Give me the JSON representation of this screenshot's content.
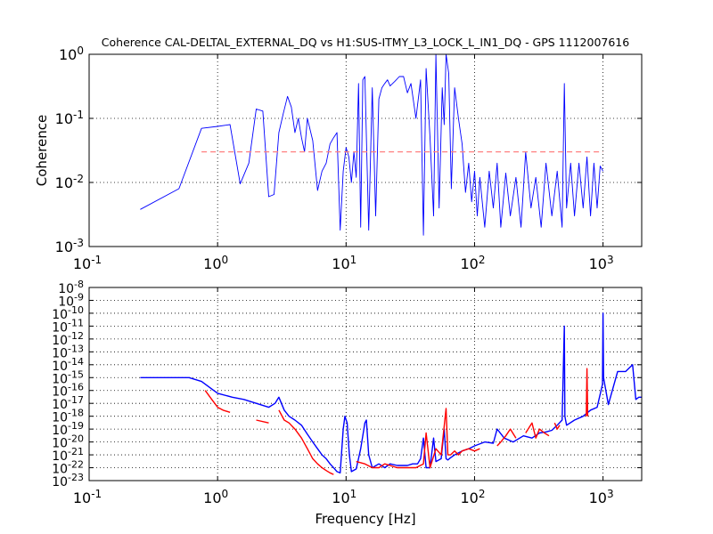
{
  "chart_data": [
    {
      "type": "line",
      "title": "Coherence CAL-DELTAL_EXTERNAL_DQ vs H1:SUS-ITMY_L3_LOCK_L_IN1_DQ - GPS 1112007616",
      "xlabel": "",
      "ylabel": "Coherence",
      "xscale": "log",
      "yscale": "log",
      "xlim": [
        0.1,
        2000
      ],
      "ylim": [
        0.001,
        1
      ],
      "grid": true,
      "x_ticks": [
        0.1,
        1,
        10,
        100,
        1000
      ],
      "y_ticks": [
        0.001,
        0.01,
        0.1,
        1
      ],
      "series": [
        {
          "color": "#0000ff",
          "style": "solid",
          "x": [
            0.25,
            0.5,
            0.75,
            1.0,
            1.25,
            1.5,
            1.75,
            2.0,
            2.25,
            2.5,
            2.75,
            3.0,
            3.25,
            3.5,
            3.75,
            4.0,
            4.25,
            4.5,
            4.75,
            5.0,
            5.5,
            6.0,
            6.5,
            7.0,
            7.5,
            8.0,
            8.5,
            9.0,
            9.5,
            10.0,
            10.5,
            11.0,
            11.5,
            12.0,
            12.5,
            13.0,
            13.5,
            14.0,
            15.0,
            16.0,
            17.0,
            18.0,
            19.0,
            20.0,
            21.0,
            22.0,
            24.0,
            26.0,
            28.0,
            30.0,
            32.0,
            35.0,
            38.0,
            40.0,
            42.0,
            45.0,
            48.0,
            50.0,
            53.0,
            56.0,
            58.0,
            60.0,
            63.0,
            66.0,
            70.0,
            75.0,
            80.0,
            85.0,
            90.0,
            95.0,
            100.0,
            105.0,
            110.0,
            120.0,
            130.0,
            140.0,
            150.0,
            160.0,
            175.0,
            190.0,
            210.0,
            230.0,
            250.0,
            275.0,
            300.0,
            330.0,
            360.0,
            400.0,
            440.0,
            480.0,
            500.0,
            520.0,
            560.0,
            600.0,
            650.0,
            700.0,
            750.0,
            800.0,
            850.0,
            900.0,
            950.0,
            1000.0
          ],
          "values": [
            0.0038,
            0.008,
            0.07,
            0.075,
            0.08,
            0.0095,
            0.02,
            0.14,
            0.13,
            0.006,
            0.0065,
            0.06,
            0.12,
            0.22,
            0.15,
            0.06,
            0.1,
            0.05,
            0.03,
            0.1,
            0.045,
            0.0075,
            0.015,
            0.02,
            0.04,
            0.05,
            0.06,
            0.0018,
            0.015,
            0.035,
            0.025,
            0.01,
            0.03,
            0.012,
            0.35,
            0.002,
            0.4,
            0.45,
            0.0018,
            0.3,
            0.003,
            0.2,
            0.3,
            0.35,
            0.4,
            0.32,
            0.38,
            0.45,
            0.45,
            0.25,
            0.35,
            0.1,
            0.4,
            0.0015,
            0.6,
            0.05,
            0.003,
            1.0,
            0.004,
            0.3,
            0.08,
            1.0,
            0.5,
            0.008,
            0.3,
            0.1,
            0.04,
            0.007,
            0.02,
            0.005,
            0.015,
            0.003,
            0.012,
            0.002,
            0.015,
            0.004,
            0.02,
            0.002,
            0.014,
            0.003,
            0.012,
            0.002,
            0.03,
            0.004,
            0.012,
            0.002,
            0.02,
            0.003,
            0.015,
            0.002,
            0.35,
            0.004,
            0.02,
            0.003,
            0.02,
            0.004,
            0.025,
            0.003,
            0.02,
            0.004,
            0.018,
            0.015
          ]
        },
        {
          "color": "#ff8080",
          "style": "dashed",
          "x": [
            0.75,
            1000
          ],
          "values": [
            0.03,
            0.03
          ]
        }
      ]
    },
    {
      "type": "line",
      "title": "",
      "xlabel": "Frequency [Hz]",
      "ylabel": "",
      "xscale": "log",
      "yscale": "log",
      "xlim": [
        0.1,
        2000
      ],
      "ylim": [
        1e-23,
        1e-08
      ],
      "grid": true,
      "x_ticks": [
        0.1,
        1,
        10,
        100,
        1000
      ],
      "y_tick_exponents": [
        -23,
        -22,
        -21,
        -20,
        -19,
        -18,
        -17,
        -16,
        -15,
        -14,
        -13,
        -12,
        -11,
        -10,
        -9,
        -8
      ],
      "series": [
        {
          "color": "#0000ff",
          "style": "solid",
          "x": [
            0.25,
            0.5,
            0.6,
            0.75,
            1.0,
            1.3,
            1.6,
            2.0,
            2.5,
            2.8,
            3.0,
            3.3,
            3.6,
            4.0,
            4.5,
            5.0,
            5.5,
            6.0,
            6.5,
            7.0,
            7.5,
            8.0,
            8.5,
            9.0,
            9.5,
            9.8,
            10.2,
            10.6,
            11.0,
            12.0,
            13.0,
            14.0,
            14.4,
            15.0,
            16.0,
            18.0,
            20.0,
            22.0,
            25.0,
            28.0,
            30.0,
            33.0,
            36.0,
            38.0,
            40.0,
            42.0,
            45.0,
            48.0,
            50.0,
            55.0,
            58.0,
            60.0,
            62.0,
            65.0,
            70.0,
            80.0,
            90.0,
            100.0,
            120.0,
            140.0,
            150.0,
            170.0,
            200.0,
            240.0,
            280.0,
            320.0,
            360.0,
            400.0,
            440.0,
            480.0,
            500.0,
            505.0,
            520.0,
            600.0,
            700.0,
            800.0,
            900.0,
            990.0,
            1000.0,
            1010.0,
            1100.0,
            1300.0,
            1500.0,
            1700.0,
            1800.0,
            1900.0,
            2000.0
          ],
          "values": [
            1e-15,
            1e-15,
            1e-15,
            5e-16,
            6e-17,
            3e-17,
            2e-17,
            1e-17,
            5e-18,
            1e-17,
            3e-17,
            3e-18,
            1e-18,
            5e-19,
            2e-19,
            4e-20,
            1e-20,
            3e-21,
            1e-21,
            5e-22,
            2e-22,
            1e-22,
            5e-23,
            4e-23,
            1e-19,
            1e-18,
            3e-19,
            1e-21,
            5e-23,
            8e-23,
            3e-21,
            3e-19,
            5e-19,
            1e-21,
            1e-22,
            2e-22,
            1e-22,
            2e-22,
            1.5e-22,
            1.5e-22,
            1.5e-22,
            2e-22,
            2e-22,
            5e-22,
            2e-20,
            1e-22,
            1e-22,
            2e-20,
            3e-22,
            5e-22,
            1e-19,
            5e-22,
            4e-22,
            6e-22,
            1e-21,
            2e-21,
            3e-21,
            5e-21,
            1e-20,
            8e-21,
            1e-19,
            2e-20,
            1e-20,
            3e-20,
            2e-20,
            5e-20,
            6e-20,
            8e-20,
            2e-19,
            5e-19,
            1e-11,
            1e-18,
            2e-19,
            5e-19,
            1e-18,
            3e-18,
            5e-18,
            3e-16,
            1e-10,
            1e-15,
            8e-18,
            3e-15,
            3e-15,
            1e-14,
            2e-17,
            3e-17,
            3e-17
          ]
        },
        {
          "color": "#ff0000",
          "style": "solid",
          "x": [
            0.8,
            0.9,
            1.0,
            1.1,
            1.25
          ],
          "values": [
            1e-16,
            2e-17,
            5e-18,
            3e-18,
            2e-18
          ]
        },
        {
          "color": "#ff0000",
          "style": "solid",
          "x": [
            2.0,
            2.5
          ],
          "values": [
            5e-19,
            3e-19
          ]
        },
        {
          "color": "#ff0000",
          "style": "solid",
          "x": [
            3.0,
            3.3,
            3.6,
            4.0,
            4.5,
            5.0,
            5.5,
            6.0,
            6.5,
            7.0,
            7.5,
            8.0
          ],
          "values": [
            3e-18,
            5e-19,
            3e-19,
            1e-19,
            2e-20,
            3e-21,
            5e-22,
            2e-22,
            1e-22,
            6e-23,
            4e-23,
            3e-23
          ]
        },
        {
          "color": "#ff0000",
          "style": "solid",
          "x": [
            12.0,
            14.0,
            16.0,
            18.0,
            20.0,
            25.0,
            30.0,
            35.0,
            40.0,
            42.0,
            45.0,
            50.0,
            55.0,
            60.0,
            62.0,
            65.0,
            70.0,
            75.0,
            80.0,
            90.0,
            100.0,
            110.0
          ],
          "values": [
            3e-22,
            2e-22,
            1e-22,
            1e-22,
            2e-22,
            1e-22,
            1e-22,
            1e-22,
            2e-22,
            5e-20,
            1e-22,
            3e-21,
            1e-21,
            4e-18,
            1e-21,
            1e-21,
            2e-21,
            1e-21,
            2e-21,
            3e-21,
            2e-21,
            3e-21
          ]
        },
        {
          "color": "#ff0000",
          "style": "solid",
          "x": [
            150.0,
            160.0,
            175.0,
            190.0,
            210.0
          ],
          "values": [
            5e-21,
            1e-20,
            3e-20,
            1e-19,
            2e-20
          ]
        },
        {
          "color": "#ff0000",
          "style": "solid",
          "x": [
            250.0,
            280.0,
            300.0,
            320.0,
            350.0,
            380.0
          ],
          "values": [
            5e-20,
            3e-19,
            2e-20,
            1e-19,
            5e-20,
            3e-20
          ]
        },
        {
          "color": "#ff0000",
          "style": "solid",
          "x": [
            420.0,
            440.0,
            460.0
          ],
          "values": [
            3e-19,
            1e-19,
            2e-19
          ]
        },
        {
          "color": "#ff0000",
          "style": "solid",
          "x": [
            740.0,
            750.0,
            760.0
          ],
          "values": [
            1e-18,
            5e-15,
            1e-18
          ]
        }
      ]
    }
  ]
}
